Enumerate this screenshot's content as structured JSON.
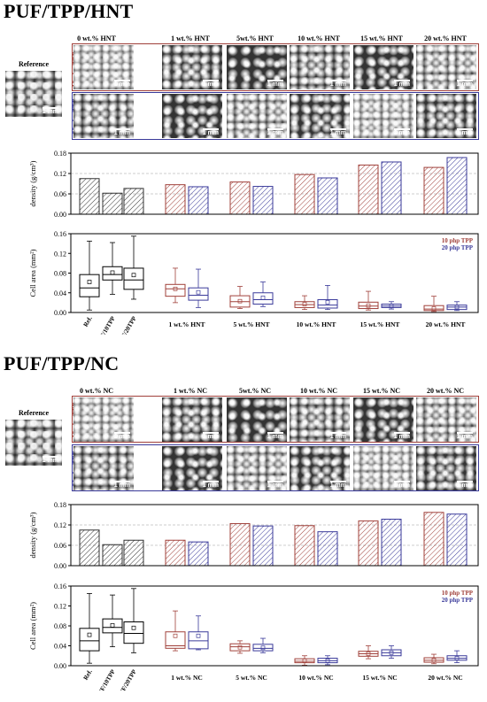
{
  "sections": [
    {
      "title": "PUF/TPP/HNT",
      "reference_label": "Reference",
      "column_headers": [
        "0 wt.% HNT",
        "1 wt.% HNT",
        "5wt.% HNT",
        "10 wt.% HNT",
        "15 wt.% HNT",
        "20 wt.% HNT"
      ],
      "row_labels": [
        "10 php TPP",
        "20 php TPP"
      ],
      "scale_label": "1 mm"
    },
    {
      "title": "PUF/TPP/NC",
      "reference_label": "Reference",
      "column_headers": [
        "0 wt.% NC",
        "1 wt.% NC",
        "5wt.% NC",
        "10 wt.% NC",
        "15 wt.% NC",
        "20 wt.% NC"
      ],
      "row_labels": [
        "10 php TPP",
        "20 php TPP"
      ],
      "scale_label": "1 mm"
    }
  ],
  "colors": {
    "tpp10": "#a0403a",
    "tpp20": "#3a3a9a",
    "ref": "#333333",
    "grid": "#9a9a9a"
  },
  "chart_data": [
    {
      "type": "bar",
      "ylabel": "density (g/cm³)",
      "ylim": [
        0,
        0.18
      ],
      "yticks": [
        "0.00",
        "0.06",
        "0.12",
        "0.18"
      ],
      "grid": true,
      "reference": {
        "categories": [
          "Ref.",
          "PUF/10TPP",
          "PUF/20TPP"
        ],
        "values": [
          0.105,
          0.062,
          0.076
        ]
      },
      "groups": [
        "1 wt.% HNT",
        "5 wt.% HNT",
        "10 wt.% HNT",
        "15 wt.% HNT",
        "20 wt.% HNT"
      ],
      "series": [
        {
          "name": "10 php TPP",
          "values": [
            0.087,
            0.095,
            0.117,
            0.145,
            0.138
          ]
        },
        {
          "name": "20 php TPP",
          "values": [
            0.081,
            0.082,
            0.107,
            0.154,
            0.167
          ]
        }
      ]
    },
    {
      "type": "box",
      "ylabel": "Cell area (mm²)",
      "ylim": [
        0,
        0.16
      ],
      "yticks": [
        "0.00",
        "0.04",
        "0.08",
        "0.12",
        "0.16"
      ],
      "legend": [
        "10 php TPP",
        "20 php TPP"
      ],
      "legend_position": "top-right",
      "reference": {
        "categories": [
          "Ref.",
          "PUF/10TPP",
          "PUF/20TPP"
        ],
        "boxes": [
          {
            "min": 0.005,
            "q1": 0.032,
            "median": 0.05,
            "q3": 0.077,
            "max": 0.145,
            "mean": 0.062
          },
          {
            "min": 0.037,
            "q1": 0.066,
            "median": 0.077,
            "q3": 0.093,
            "max": 0.142,
            "mean": 0.081
          },
          {
            "min": 0.027,
            "q1": 0.047,
            "median": 0.066,
            "q3": 0.09,
            "max": 0.155,
            "mean": 0.076
          }
        ]
      },
      "groups": [
        "1 wt.% HNT",
        "5 wt.% HNT",
        "10 wt.% HNT",
        "15 wt.% HNT",
        "20 wt.% HNT"
      ],
      "series": [
        {
          "name": "10 php TPP",
          "boxes": [
            {
              "min": 0.02,
              "q1": 0.033,
              "median": 0.048,
              "q3": 0.057,
              "max": 0.09,
              "mean": 0.048
            },
            {
              "min": 0.008,
              "q1": 0.011,
              "median": 0.022,
              "q3": 0.034,
              "max": 0.053,
              "mean": 0.023
            },
            {
              "min": 0.006,
              "q1": 0.01,
              "median": 0.016,
              "q3": 0.022,
              "max": 0.034,
              "mean": 0.017
            },
            {
              "min": 0.005,
              "q1": 0.008,
              "median": 0.013,
              "q3": 0.021,
              "max": 0.043,
              "mean": 0.014
            },
            {
              "min": 0.002,
              "q1": 0.004,
              "median": 0.007,
              "q3": 0.014,
              "max": 0.033,
              "mean": 0.008
            }
          ]
        },
        {
          "name": "20 php TPP",
          "boxes": [
            {
              "min": 0.01,
              "q1": 0.025,
              "median": 0.035,
              "q3": 0.05,
              "max": 0.088,
              "mean": 0.041
            },
            {
              "min": 0.012,
              "q1": 0.017,
              "median": 0.026,
              "q3": 0.04,
              "max": 0.062,
              "mean": 0.03
            },
            {
              "min": 0.006,
              "q1": 0.009,
              "median": 0.015,
              "q3": 0.026,
              "max": 0.055,
              "mean": 0.021
            },
            {
              "min": 0.007,
              "q1": 0.01,
              "median": 0.013,
              "q3": 0.017,
              "max": 0.022,
              "mean": 0.013
            },
            {
              "min": 0.004,
              "q1": 0.006,
              "median": 0.011,
              "q3": 0.015,
              "max": 0.022,
              "mean": 0.011
            }
          ]
        }
      ]
    },
    {
      "type": "bar",
      "ylabel": "density (g/cm³)",
      "ylim": [
        0,
        0.18
      ],
      "yticks": [
        "0.00",
        "0.06",
        "0.12",
        "0.18"
      ],
      "grid": true,
      "reference": {
        "categories": [
          "Ref.",
          "PUF/10TPP",
          "PUF/20TPP"
        ],
        "values": [
          0.105,
          0.062,
          0.075
        ]
      },
      "groups": [
        "1 wt.% NC",
        "5 wt.% NC",
        "10 wt.% NC",
        "15 wt.% NC",
        "20 wt.% NC"
      ],
      "series": [
        {
          "name": "10 php TPP",
          "values": [
            0.075,
            0.124,
            0.118,
            0.132,
            0.157
          ]
        },
        {
          "name": "20 php TPP",
          "values": [
            0.07,
            0.117,
            0.1,
            0.137,
            0.152
          ]
        }
      ]
    },
    {
      "type": "box",
      "ylabel": "Cell area (mm²)",
      "ylim": [
        0,
        0.16
      ],
      "yticks": [
        "0.00",
        "0.04",
        "0.08",
        "0.12",
        "0.16"
      ],
      "legend": [
        "10 php TPP",
        "20 php TPP"
      ],
      "legend_position": "top-right",
      "reference": {
        "categories": [
          "Ref.",
          "PUF/10TPP",
          "PUF/20TPP"
        ],
        "boxes": [
          {
            "min": 0.005,
            "q1": 0.03,
            "median": 0.05,
            "q3": 0.075,
            "max": 0.145,
            "mean": 0.062
          },
          {
            "min": 0.038,
            "q1": 0.066,
            "median": 0.077,
            "q3": 0.094,
            "max": 0.142,
            "mean": 0.081
          },
          {
            "min": 0.026,
            "q1": 0.045,
            "median": 0.065,
            "q3": 0.088,
            "max": 0.155,
            "mean": 0.076
          }
        ]
      },
      "groups": [
        "1 wt.% NC",
        "5 wt.% NC",
        "10 wt.% NC",
        "15 wt.% NC",
        "20 wt.% NC"
      ],
      "series": [
        {
          "name": "10 php TPP",
          "boxes": [
            {
              "min": 0.03,
              "q1": 0.035,
              "median": 0.04,
              "q3": 0.068,
              "max": 0.11,
              "mean": 0.06
            },
            {
              "min": 0.025,
              "q1": 0.03,
              "median": 0.038,
              "q3": 0.044,
              "max": 0.05,
              "mean": 0.037
            },
            {
              "min": 0.001,
              "q1": 0.006,
              "median": 0.009,
              "q3": 0.014,
              "max": 0.02,
              "mean": 0.01
            },
            {
              "min": 0.014,
              "q1": 0.019,
              "median": 0.024,
              "q3": 0.029,
              "max": 0.04,
              "mean": 0.024
            },
            {
              "min": 0.004,
              "q1": 0.007,
              "median": 0.011,
              "q3": 0.016,
              "max": 0.023,
              "mean": 0.011
            }
          ]
        },
        {
          "name": "20 php TPP",
          "boxes": [
            {
              "min": 0.032,
              "q1": 0.034,
              "median": 0.05,
              "q3": 0.068,
              "max": 0.1,
              "mean": 0.06
            },
            {
              "min": 0.026,
              "q1": 0.03,
              "median": 0.035,
              "q3": 0.043,
              "max": 0.055,
              "mean": 0.036
            },
            {
              "min": 0.002,
              "q1": 0.006,
              "median": 0.01,
              "q3": 0.015,
              "max": 0.02,
              "mean": 0.01
            },
            {
              "min": 0.015,
              "q1": 0.02,
              "median": 0.026,
              "q3": 0.032,
              "max": 0.04,
              "mean": 0.026
            },
            {
              "min": 0.006,
              "q1": 0.011,
              "median": 0.015,
              "q3": 0.02,
              "max": 0.03,
              "mean": 0.015
            }
          ]
        }
      ]
    }
  ]
}
